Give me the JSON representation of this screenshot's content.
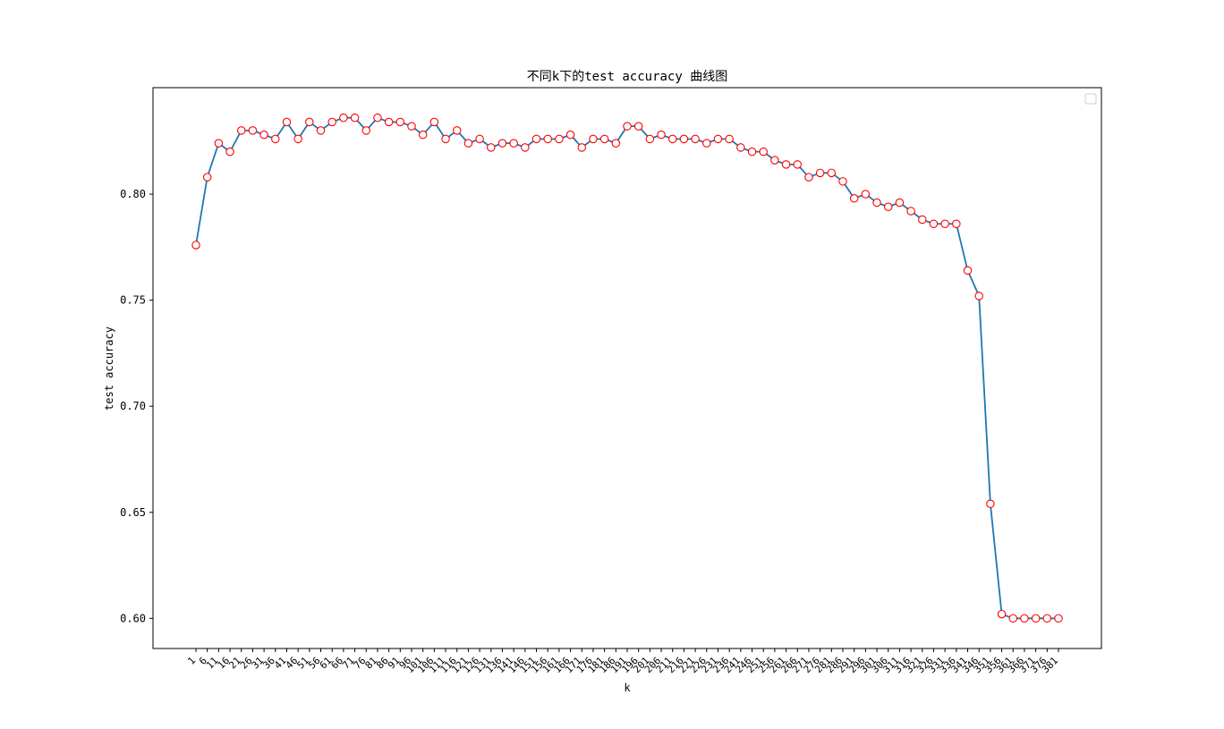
{
  "chart_data": {
    "type": "line",
    "title": "不同k下的test accuracy 曲线图",
    "xlabel": "k",
    "ylabel": "test accuracy",
    "x": [
      1,
      6,
      11,
      16,
      21,
      26,
      31,
      36,
      41,
      46,
      51,
      56,
      61,
      66,
      71,
      76,
      81,
      86,
      91,
      96,
      101,
      106,
      111,
      116,
      121,
      126,
      131,
      136,
      141,
      146,
      151,
      156,
      161,
      166,
      171,
      176,
      181,
      186,
      191,
      196,
      201,
      206,
      211,
      216,
      221,
      226,
      231,
      236,
      241,
      246,
      251,
      256,
      261,
      266,
      271,
      276,
      281,
      286,
      291,
      296,
      301,
      306,
      311,
      316,
      321,
      326,
      331,
      336,
      341,
      346,
      351,
      356,
      361,
      366,
      371,
      376,
      381
    ],
    "series": [
      {
        "values": [
          0.776,
          0.808,
          0.824,
          0.82,
          0.83,
          0.83,
          0.828,
          0.826,
          0.834,
          0.826,
          0.834,
          0.83,
          0.834,
          0.836,
          0.836,
          0.83,
          0.836,
          0.834,
          0.834,
          0.832,
          0.828,
          0.834,
          0.826,
          0.83,
          0.824,
          0.826,
          0.822,
          0.824,
          0.824,
          0.822,
          0.826,
          0.826,
          0.826,
          0.828,
          0.822,
          0.826,
          0.826,
          0.824,
          0.832,
          0.832,
          0.826,
          0.828,
          0.826,
          0.826,
          0.826,
          0.824,
          0.826,
          0.826,
          0.822,
          0.82,
          0.82,
          0.816,
          0.814,
          0.814,
          0.808,
          0.81,
          0.81,
          0.806,
          0.798,
          0.8,
          0.796,
          0.794,
          0.796,
          0.792,
          0.788,
          0.786,
          0.786,
          0.786,
          0.764,
          0.752,
          0.654,
          0.602,
          0.6,
          0.6,
          0.6,
          0.6,
          0.6
        ]
      }
    ],
    "yticks": [
      0.6,
      0.65,
      0.7,
      0.75,
      0.8
    ],
    "ylim": [
      0.5858,
      0.8502
    ],
    "grid": false,
    "legend": "top-right (empty)",
    "colors": {
      "line": "#1f77b4",
      "marker_edge": "#ff0000",
      "marker_face": "#ffffff",
      "axes": "#000000"
    }
  }
}
